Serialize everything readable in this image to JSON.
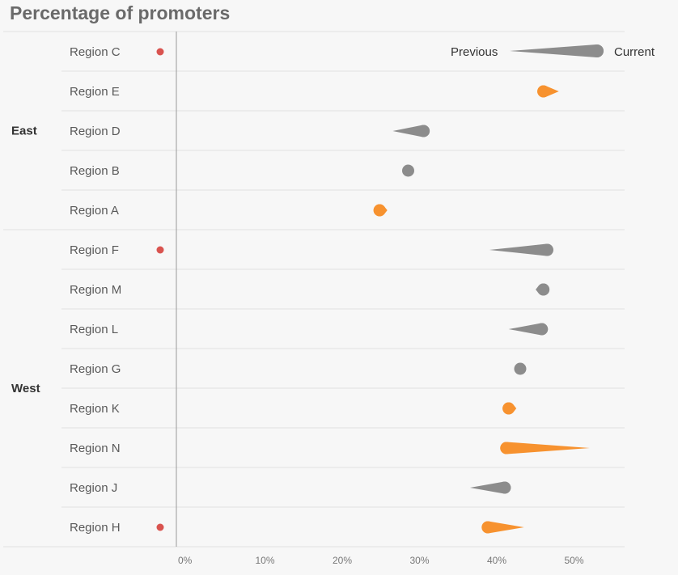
{
  "chart_data": {
    "type": "scatter",
    "title": "Percentage of promoters",
    "xlabel": "",
    "ylabel": "",
    "xlim": [
      0,
      58
    ],
    "x_ticks": [
      "0%",
      "10%",
      "20%",
      "30%",
      "40%",
      "50%"
    ],
    "x_tick_values": [
      0,
      10,
      20,
      30,
      40,
      50
    ],
    "grid": false,
    "legend": {
      "previous_label": "Previous",
      "current_label": "Current",
      "position": "top-right"
    },
    "groups": [
      {
        "name": "East",
        "regions": [
          {
            "name": "Region C",
            "previous": null,
            "current": null,
            "flag": true
          },
          {
            "name": "Region E",
            "previous": 49.5,
            "current": 47.5,
            "flag": false
          },
          {
            "name": "Region D",
            "previous": 28.0,
            "current": 32.0,
            "flag": false
          },
          {
            "name": "Region B",
            "previous": 30.0,
            "current": 30.0,
            "flag": false
          },
          {
            "name": "Region A",
            "previous": 27.3,
            "current": 26.3,
            "flag": false
          }
        ]
      },
      {
        "name": "West",
        "regions": [
          {
            "name": "Region F",
            "previous": 40.5,
            "current": 48.0,
            "flag": true
          },
          {
            "name": "Region M",
            "previous": 46.5,
            "current": 47.5,
            "flag": false
          },
          {
            "name": "Region L",
            "previous": 43.0,
            "current": 47.3,
            "flag": false
          },
          {
            "name": "Region G",
            "previous": 44.5,
            "current": 44.5,
            "flag": false
          },
          {
            "name": "Region K",
            "previous": 44.0,
            "current": 43.0,
            "flag": false
          },
          {
            "name": "Region N",
            "previous": 53.5,
            "current": 42.7,
            "flag": false
          },
          {
            "name": "Region J",
            "previous": 38.0,
            "current": 42.5,
            "flag": false
          },
          {
            "name": "Region H",
            "previous": 45.0,
            "current": 40.3,
            "flag": true
          }
        ]
      }
    ],
    "colors": {
      "increase": "#8c8c8c",
      "decrease": "#f7922f",
      "flag": "#d9534f",
      "legend": "#8c8c8c"
    }
  }
}
